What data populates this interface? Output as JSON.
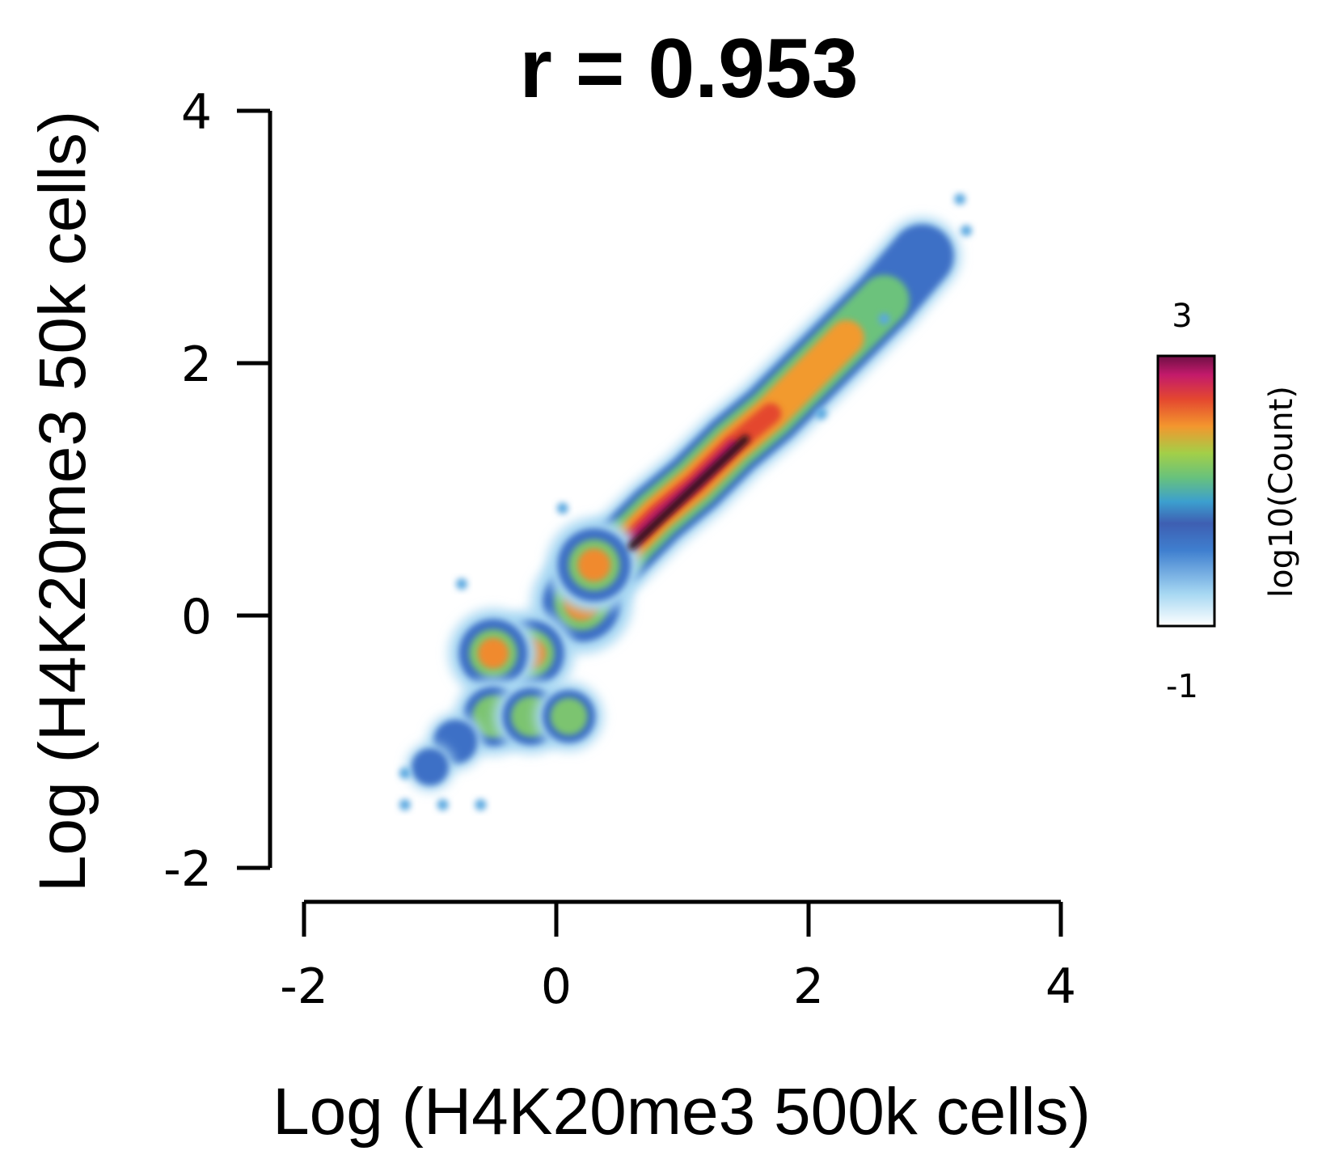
{
  "chart_data": {
    "type": "heatmap",
    "title": "r = 0.953",
    "xlabel": "Log (H4K20me3 500k cells)",
    "ylabel": "Log (H4K20me3 50k cells)",
    "xlim": [
      -2,
      4
    ],
    "ylim": [
      -2,
      4
    ],
    "x_ticks": [
      "-2",
      "0",
      "2",
      "4"
    ],
    "y_ticks": [
      "4",
      "2",
      "0",
      "-2"
    ],
    "y_tick_values": [
      4,
      2,
      0,
      -2
    ],
    "x_tick_values": [
      -2,
      0,
      2,
      4
    ],
    "colorbar": {
      "label": "log10(Count)",
      "max_label": "3",
      "min_label": "-1",
      "range": [
        -1,
        3
      ],
      "colors": [
        "#ffffff",
        "#9fd3f0",
        "#4ba3df",
        "#3d5fb0",
        "#3b9fd0",
        "#6cc27a",
        "#9fcf4a",
        "#f29a2e",
        "#e4442e",
        "#c01b6a",
        "#5a0f3a"
      ]
    },
    "density_points": [
      {
        "x": 0.5,
        "y": 0.5,
        "level": 2.8
      },
      {
        "x": 0.8,
        "y": 0.8,
        "level": 3.0
      },
      {
        "x": 1.1,
        "y": 1.05,
        "level": 2.9
      },
      {
        "x": 1.4,
        "y": 1.35,
        "level": 2.6
      },
      {
        "x": 1.7,
        "y": 1.6,
        "level": 2.2
      },
      {
        "x": 2.0,
        "y": 1.9,
        "level": 1.9
      },
      {
        "x": 2.3,
        "y": 2.2,
        "level": 1.6
      },
      {
        "x": 2.6,
        "y": 2.5,
        "level": 1.2
      },
      {
        "x": 2.9,
        "y": 2.85,
        "level": 0.6
      },
      {
        "x": 0.2,
        "y": 0.1,
        "level": 2.0
      },
      {
        "x": 0.3,
        "y": 0.4,
        "level": 1.8
      },
      {
        "x": -0.2,
        "y": -0.3,
        "level": 1.5
      },
      {
        "x": -0.5,
        "y": -0.3,
        "level": 1.6
      },
      {
        "x": -0.5,
        "y": -0.8,
        "level": 1.2
      },
      {
        "x": -0.2,
        "y": -0.8,
        "level": 1.1
      },
      {
        "x": 0.1,
        "y": -0.8,
        "level": 0.9
      },
      {
        "x": -0.8,
        "y": -1.0,
        "level": 0.5
      },
      {
        "x": -1.0,
        "y": -1.2,
        "level": 0.2
      }
    ]
  }
}
